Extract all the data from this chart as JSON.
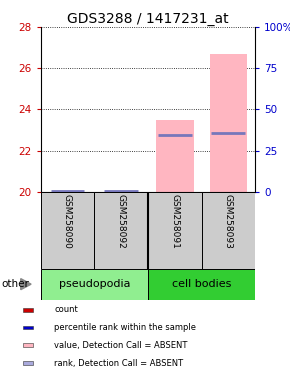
{
  "title": "GDS3288 / 1417231_at",
  "samples": [
    "GSM258090",
    "GSM258092",
    "GSM258091",
    "GSM258093"
  ],
  "groups": [
    {
      "label": "pseudopodia",
      "color": "#90EE90",
      "samples": [
        0,
        1
      ]
    },
    {
      "label": "cell bodies",
      "color": "#32CD32",
      "samples": [
        2,
        3
      ]
    }
  ],
  "ylim_left": [
    20,
    28
  ],
  "ylim_right": [
    0,
    100
  ],
  "yticks_left": [
    20,
    22,
    24,
    26,
    28
  ],
  "yticks_right": [
    0,
    25,
    50,
    75,
    100
  ],
  "ytick_labels_right": [
    "0",
    "25",
    "50",
    "75",
    "100%"
  ],
  "left_axis_color": "#CC0000",
  "right_axis_color": "#0000CC",
  "pink_bar_tops": [
    null,
    null,
    23.5,
    26.7
  ],
  "pink_bar_bottom": 20.0,
  "blue_line_values": [
    20.05,
    20.05,
    22.75,
    22.85
  ],
  "pink_color": "#FFB6C1",
  "blue_color": "#7777BB",
  "bar_width": 0.7,
  "legend_items": [
    {
      "label": "count",
      "color": "#CC0000"
    },
    {
      "label": "percentile rank within the sample",
      "color": "#0000CC"
    },
    {
      "label": "value, Detection Call = ABSENT",
      "color": "#FFB6C1"
    },
    {
      "label": "rank, Detection Call = ABSENT",
      "color": "#AAAADD"
    }
  ],
  "other_label": "other",
  "background_color": "#FFFFFF",
  "title_fontsize": 10,
  "pseudopodia_color": "#90EE90",
  "cell_bodies_color": "#32CD32",
  "gray_box_color": "#CCCCCC"
}
